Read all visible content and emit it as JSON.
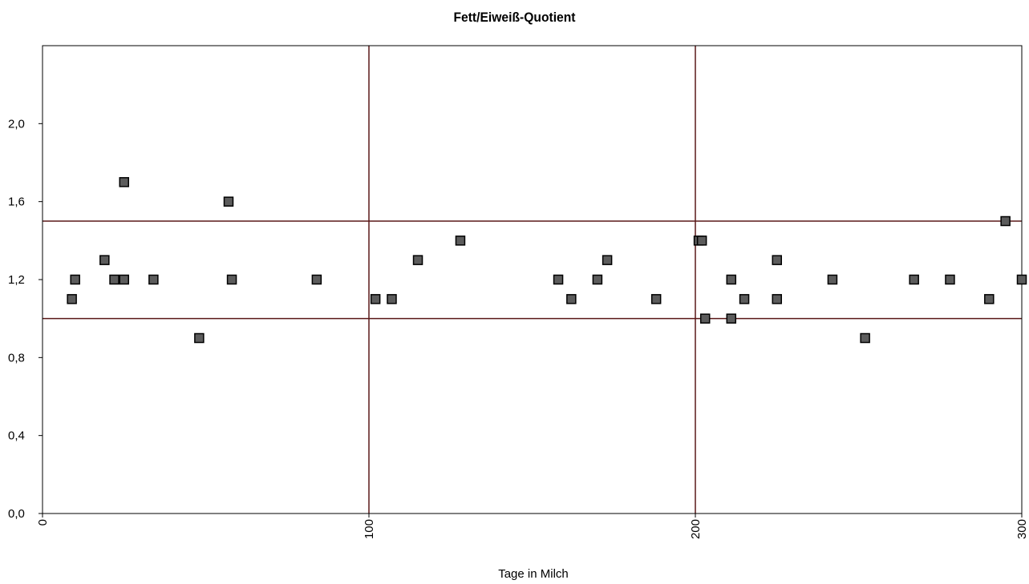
{
  "chart_data": {
    "type": "scatter",
    "title": "Fett/Eiweiß-Quotient",
    "xlabel": "Tage in Milch",
    "ylabel": "",
    "xlim": [
      0,
      300
    ],
    "ylim": [
      0,
      2.4
    ],
    "x_ticks": [
      0,
      100,
      200,
      300
    ],
    "x_tick_labels": [
      "0",
      "100",
      "200",
      "300"
    ],
    "y_ticks": [
      0,
      0.4,
      0.8,
      1.2,
      1.6,
      2.0
    ],
    "y_tick_labels": [
      "0,0",
      "0,4",
      "0,8",
      "1,2",
      "1,6",
      "2,0"
    ],
    "grid": false,
    "reference_lines": {
      "x": [
        100,
        200
      ],
      "y": [
        1.0,
        1.5
      ]
    },
    "colors": {
      "reference_line": "#5a1818",
      "marker_fill": "#5c5c5c",
      "marker_stroke": "#000000"
    },
    "series": [
      {
        "marker": "square",
        "points": [
          {
            "x": 9,
            "y": 1.1
          },
          {
            "x": 10,
            "y": 1.2
          },
          {
            "x": 19,
            "y": 1.3
          },
          {
            "x": 22,
            "y": 1.2
          },
          {
            "x": 25,
            "y": 1.7
          },
          {
            "x": 25,
            "y": 1.2
          },
          {
            "x": 34,
            "y": 1.2
          },
          {
            "x": 48,
            "y": 0.9
          },
          {
            "x": 57,
            "y": 1.6
          },
          {
            "x": 58,
            "y": 1.2
          },
          {
            "x": 84,
            "y": 1.2
          },
          {
            "x": 102,
            "y": 1.1
          },
          {
            "x": 107,
            "y": 1.1
          },
          {
            "x": 115,
            "y": 1.3
          },
          {
            "x": 128,
            "y": 1.4
          },
          {
            "x": 158,
            "y": 1.2
          },
          {
            "x": 162,
            "y": 1.1
          },
          {
            "x": 170,
            "y": 1.2
          },
          {
            "x": 173,
            "y": 1.3
          },
          {
            "x": 188,
            "y": 1.1
          },
          {
            "x": 201,
            "y": 1.4
          },
          {
            "x": 202,
            "y": 1.4
          },
          {
            "x": 203,
            "y": 1.0
          },
          {
            "x": 211,
            "y": 1.2
          },
          {
            "x": 211,
            "y": 1.0
          },
          {
            "x": 215,
            "y": 1.1
          },
          {
            "x": 225,
            "y": 1.3
          },
          {
            "x": 225,
            "y": 1.1
          },
          {
            "x": 242,
            "y": 1.2
          },
          {
            "x": 252,
            "y": 0.9
          },
          {
            "x": 267,
            "y": 1.2
          },
          {
            "x": 278,
            "y": 1.2
          },
          {
            "x": 290,
            "y": 1.1
          },
          {
            "x": 295,
            "y": 1.5
          },
          {
            "x": 300,
            "y": 1.2
          }
        ]
      }
    ]
  }
}
